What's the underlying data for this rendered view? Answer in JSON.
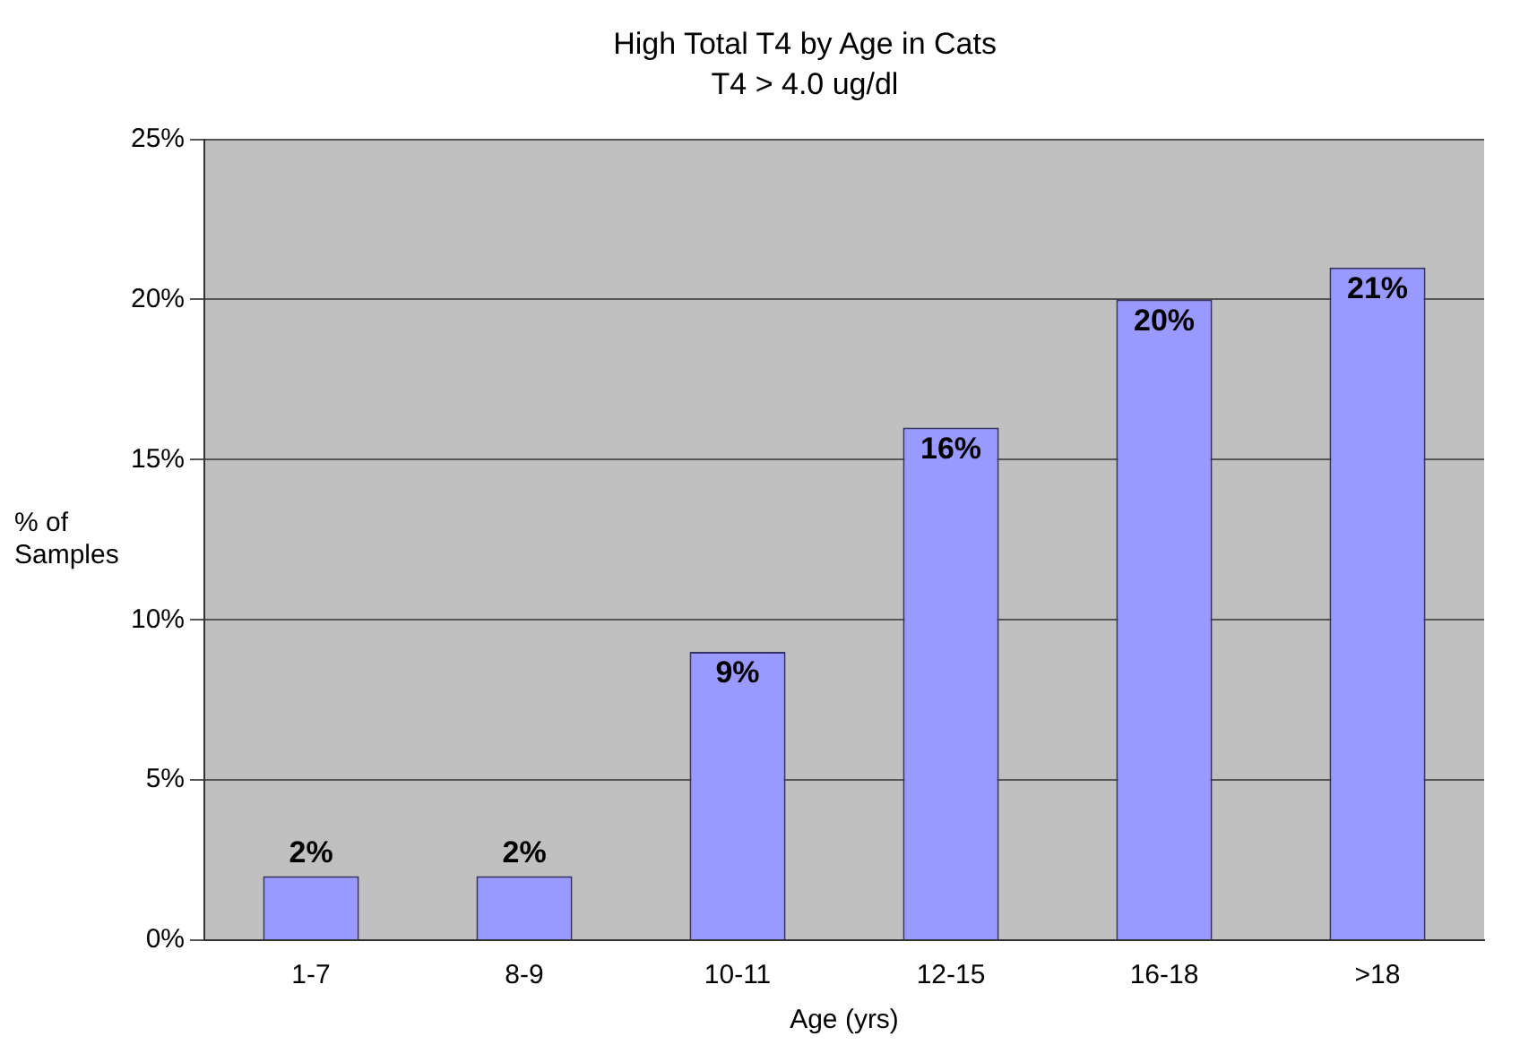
{
  "chart_data": {
    "type": "bar",
    "title": "High Total T4 by Age in Cats",
    "subtitle": "T4 > 4.0 ug/dl",
    "xlabel": "Age (yrs)",
    "ylabel": "% of Samples",
    "categories": [
      "1-7",
      "8-9",
      "10-11",
      "12-15",
      "16-18",
      ">18"
    ],
    "values": [
      2,
      2,
      9,
      16,
      20,
      21
    ],
    "value_labels": [
      "2%",
      "2%",
      "9%",
      "16%",
      "20%",
      "21%"
    ],
    "color": "#9999ff",
    "ylim": [
      0,
      25
    ],
    "yticks": [
      {
        "value": 0,
        "label": "0%"
      },
      {
        "value": 5,
        "label": "5%"
      },
      {
        "value": 10,
        "label": "10%"
      },
      {
        "value": 15,
        "label": "15%"
      },
      {
        "value": 20,
        "label": "20%"
      },
      {
        "value": 25,
        "label": "25%"
      }
    ],
    "grid": "y",
    "legend": false
  }
}
